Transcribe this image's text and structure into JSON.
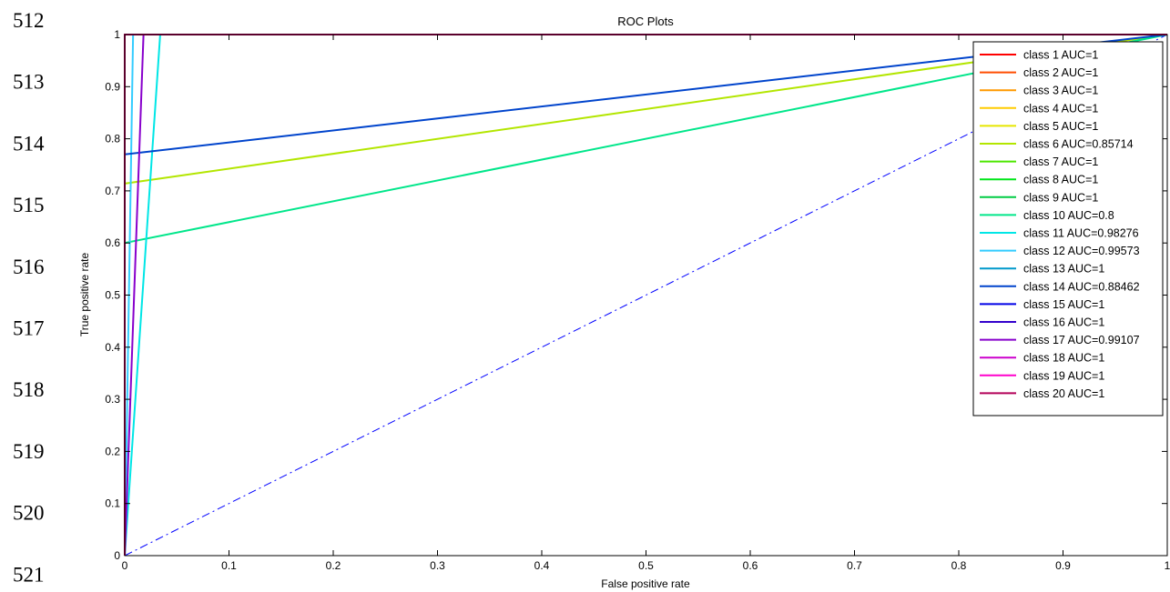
{
  "line_numbers": [
    "512",
    "513",
    "514",
    "515",
    "516",
    "517",
    "518",
    "519",
    "520",
    "521"
  ],
  "chart_data": {
    "type": "line",
    "title": "ROC Plots",
    "xlabel": "False positive rate",
    "ylabel": "True positive rate",
    "xlim": [
      0,
      1
    ],
    "ylim": [
      0,
      1
    ],
    "xticks": [
      "0",
      "0.1",
      "0.2",
      "0.3",
      "0.4",
      "0.5",
      "0.6",
      "0.7",
      "0.8",
      "0.9",
      "1"
    ],
    "yticks": [
      "0",
      "0.1",
      "0.2",
      "0.3",
      "0.4",
      "0.5",
      "0.6",
      "0.7",
      "0.8",
      "0.9",
      "1"
    ],
    "grid": false,
    "legend_position": "top-right",
    "reference_line": {
      "x": [
        0,
        1
      ],
      "y": [
        0,
        1
      ],
      "style": "dash-dot",
      "color": "#0000ff"
    },
    "series": [
      {
        "name": "class 1 AUC=1",
        "color": "#ff0000",
        "x": [
          0,
          0,
          1
        ],
        "y": [
          0,
          1,
          1
        ]
      },
      {
        "name": "class 2 AUC=1",
        "color": "#ff4d00",
        "x": [
          0,
          0,
          1
        ],
        "y": [
          0,
          1,
          1
        ]
      },
      {
        "name": "class 3 AUC=1",
        "color": "#ff9900",
        "x": [
          0,
          0,
          1
        ],
        "y": [
          0,
          1,
          1
        ]
      },
      {
        "name": "class 4 AUC=1",
        "color": "#ffcc00",
        "x": [
          0,
          0,
          1
        ],
        "y": [
          0,
          1,
          1
        ]
      },
      {
        "name": "class 5 AUC=1",
        "color": "#e6e600",
        "x": [
          0,
          0,
          1
        ],
        "y": [
          0,
          1,
          1
        ]
      },
      {
        "name": "class 6 AUC=0.85714",
        "color": "#b3e600",
        "x": [
          0,
          0,
          1
        ],
        "y": [
          0,
          0.714,
          1
        ]
      },
      {
        "name": "class 7 AUC=1",
        "color": "#4de600",
        "x": [
          0,
          0,
          1
        ],
        "y": [
          0,
          1,
          1
        ]
      },
      {
        "name": "class 8 AUC=1",
        "color": "#00e619",
        "x": [
          0,
          0,
          1
        ],
        "y": [
          0,
          1,
          1
        ]
      },
      {
        "name": "class 9 AUC=1",
        "color": "#00cc44",
        "x": [
          0,
          0,
          1
        ],
        "y": [
          0,
          1,
          1
        ]
      },
      {
        "name": "class 10 AUC=0.8",
        "color": "#00e68a",
        "x": [
          0,
          0,
          1
        ],
        "y": [
          0,
          0.6,
          1
        ]
      },
      {
        "name": "class 11 AUC=0.98276",
        "color": "#00e6e6",
        "x": [
          0,
          0.034,
          1
        ],
        "y": [
          0,
          1,
          1
        ]
      },
      {
        "name": "class 12 AUC=0.99573",
        "color": "#33ccff",
        "x": [
          0,
          0.008,
          1
        ],
        "y": [
          0,
          1,
          1
        ]
      },
      {
        "name": "class 13 AUC=1",
        "color": "#0099cc",
        "x": [
          0,
          0,
          1
        ],
        "y": [
          0,
          1,
          1
        ]
      },
      {
        "name": "class 14 AUC=0.88462",
        "color": "#0044cc",
        "x": [
          0,
          0,
          1
        ],
        "y": [
          0,
          0.77,
          1
        ]
      },
      {
        "name": "class 15 AUC=1",
        "color": "#0000e6",
        "x": [
          0,
          0,
          1
        ],
        "y": [
          0,
          1,
          1
        ]
      },
      {
        "name": "class 16 AUC=1",
        "color": "#3300cc",
        "x": [
          0,
          0,
          1
        ],
        "y": [
          0,
          1,
          1
        ]
      },
      {
        "name": "class 17 AUC=0.99107",
        "color": "#8800cc",
        "x": [
          0,
          0.018,
          1
        ],
        "y": [
          0,
          1,
          1
        ]
      },
      {
        "name": "class 18 AUC=1",
        "color": "#cc00cc",
        "x": [
          0,
          0,
          1
        ],
        "y": [
          0,
          1,
          1
        ]
      },
      {
        "name": "class 19 AUC=1",
        "color": "#ff00cc",
        "x": [
          0,
          0,
          1
        ],
        "y": [
          0,
          1,
          1
        ]
      },
      {
        "name": "class 20 AUC=1",
        "color": "#b30059",
        "x": [
          0,
          0,
          1
        ],
        "y": [
          0,
          1,
          1
        ]
      }
    ]
  }
}
